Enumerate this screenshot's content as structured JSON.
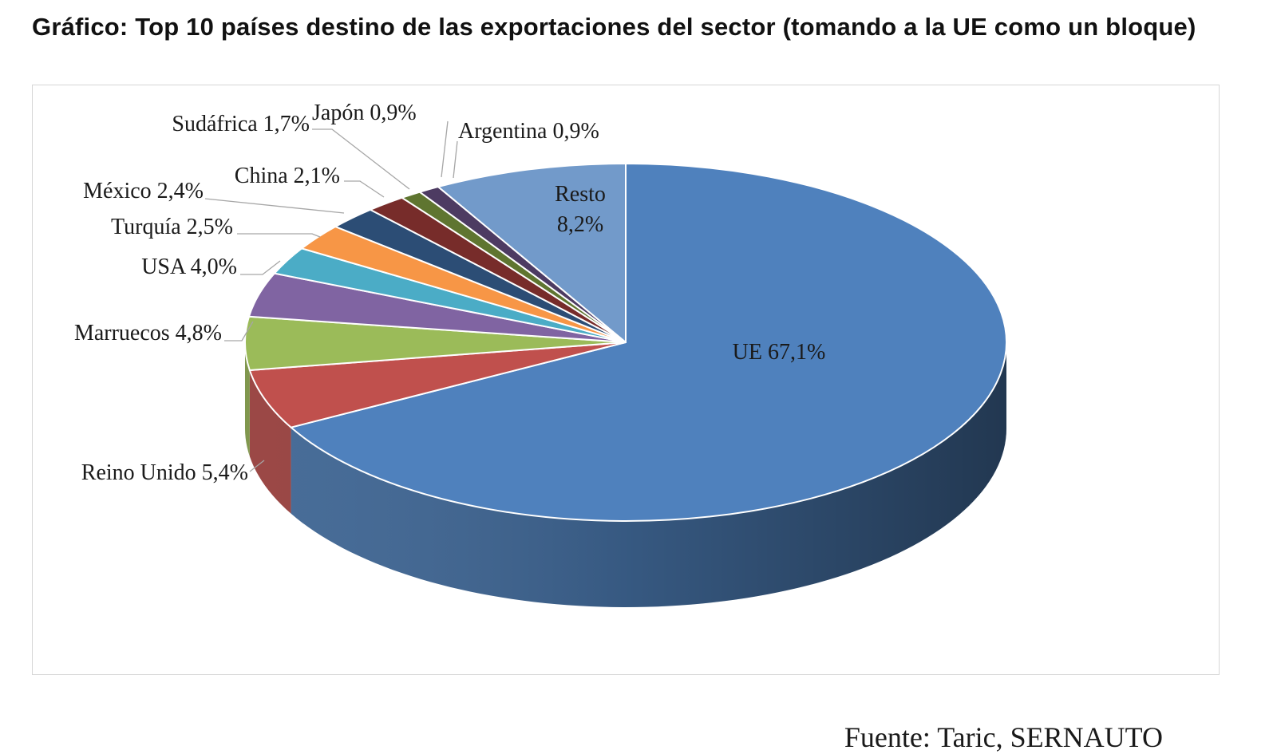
{
  "title": "Gráfico: Top 10 países destino de las exportaciones del sector (tomando a la UE como un bloque)",
  "source": "Fuente: Taric, SERNAUTO",
  "chart_data": {
    "type": "pie",
    "style": "3d",
    "legend": "none",
    "slices": [
      {
        "name": "UE",
        "value": 67.1,
        "label": "UE 67,1%",
        "color": "#4f81bd"
      },
      {
        "name": "Reino Unido",
        "value": 5.4,
        "label": "Reino Unido 5,4%",
        "color": "#c0504d"
      },
      {
        "name": "Marruecos",
        "value": 4.8,
        "label": "Marruecos 4,8%",
        "color": "#9bbb59"
      },
      {
        "name": "USA",
        "value": 4.0,
        "label": "USA 4,0%",
        "color": "#8064a2"
      },
      {
        "name": "Turquía",
        "value": 2.5,
        "label": "Turquía 2,5%",
        "color": "#4bacc6"
      },
      {
        "name": "México",
        "value": 2.4,
        "label": "México 2,4%",
        "color": "#f79646"
      },
      {
        "name": "China",
        "value": 2.1,
        "label": "China 2,1%",
        "color": "#2c4d75"
      },
      {
        "name": "Sudáfrica",
        "value": 1.7,
        "label": "Sudáfrica 1,7%",
        "color": "#772c2a"
      },
      {
        "name": "Japón",
        "value": 0.9,
        "label": "Japón 0,9%",
        "color": "#5f7530"
      },
      {
        "name": "Argentina",
        "value": 0.9,
        "label": "Argentina 0,9%",
        "color": "#4d3b62"
      },
      {
        "name": "Resto",
        "value": 8.2,
        "label": "Resto 8,2%",
        "color": "#729aca"
      }
    ]
  }
}
